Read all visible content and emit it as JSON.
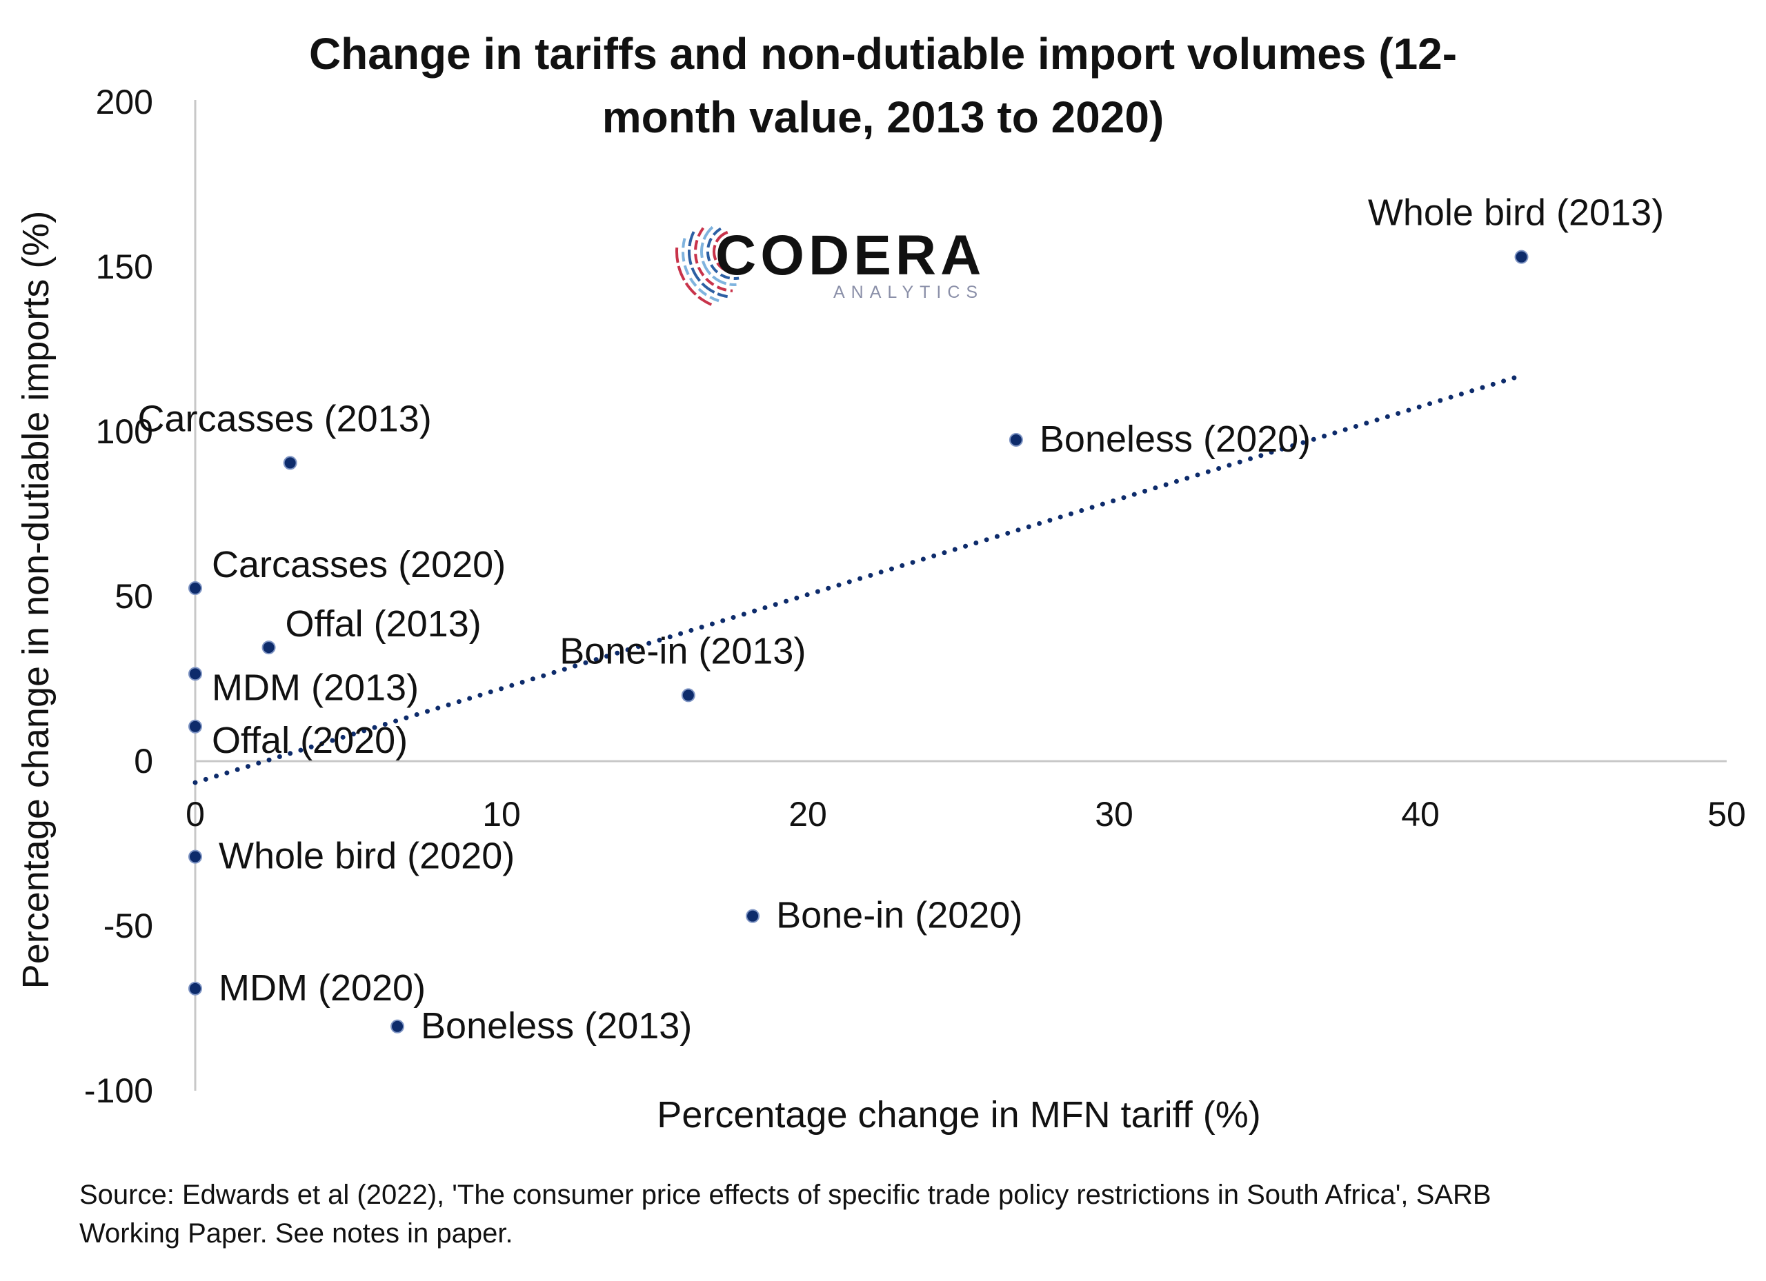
{
  "chart_data": {
    "type": "scatter",
    "title_lines": [
      "Change in  tariffs and non-dutiable import volumes (12-",
      "month value, 2013 to 2020)"
    ],
    "xlabel": "Percentage change in MFN tariff (%)",
    "ylabel": "Percentage change in non-dutiable imports (%)",
    "xlim": [
      0,
      50
    ],
    "ylim": [
      -100,
      200
    ],
    "x_ticks": [
      0,
      10,
      20,
      30,
      40,
      50
    ],
    "y_ticks": [
      200,
      150,
      100,
      50,
      0,
      -50,
      -100
    ],
    "grid": false,
    "marker_color": "#0d2b6b",
    "trendline": {
      "style": "dotted",
      "color": "#0d2b6b",
      "x": [
        0,
        43.3
      ],
      "y": [
        -6.5,
        117
      ]
    },
    "points": [
      {
        "label": "Whole bird (2013)",
        "x": 43.3,
        "y": 153,
        "label_pos": "above"
      },
      {
        "label": "Boneless (2020)",
        "x": 26.8,
        "y": 97.5,
        "label_pos": "right"
      },
      {
        "label": "Carcasses (2013)",
        "x": 3.1,
        "y": 90.5,
        "label_pos": "above"
      },
      {
        "label": "Carcasses (2020)",
        "x": 0,
        "y": 52.5,
        "label_pos": "upper-right"
      },
      {
        "label": "Offal (2013)",
        "x": 2.4,
        "y": 34.5,
        "label_pos": "upper-right"
      },
      {
        "label": "MDM (2013)",
        "x": 0,
        "y": 26.5,
        "label_pos": "lower-right"
      },
      {
        "label": "Bone-in (2013)",
        "x": 16.1,
        "y": 20,
        "label_pos": "above"
      },
      {
        "label": "Offal (2020)",
        "x": 0,
        "y": 10.5,
        "label_pos": "lower-right"
      },
      {
        "label": "Whole bird (2020)",
        "x": 0,
        "y": -29,
        "label_pos": "right"
      },
      {
        "label": "Bone-in (2020)",
        "x": 18.2,
        "y": -47,
        "label_pos": "right"
      },
      {
        "label": "MDM (2020)",
        "x": 0,
        "y": -69,
        "label_pos": "right"
      },
      {
        "label": "Boneless (2013)",
        "x": 6.6,
        "y": -80.5,
        "label_pos": "right"
      }
    ]
  },
  "logo": {
    "name": "CODERA",
    "sub": "ANALYTICS",
    "colors": [
      "#c8334a",
      "#2c5fa3",
      "#7fb3de"
    ]
  },
  "source_lines": [
    "Source: Edwards et al (2022), 'The consumer price effects of specific trade policy restrictions in South Africa', SARB",
    "Working Paper. See notes in paper."
  ]
}
